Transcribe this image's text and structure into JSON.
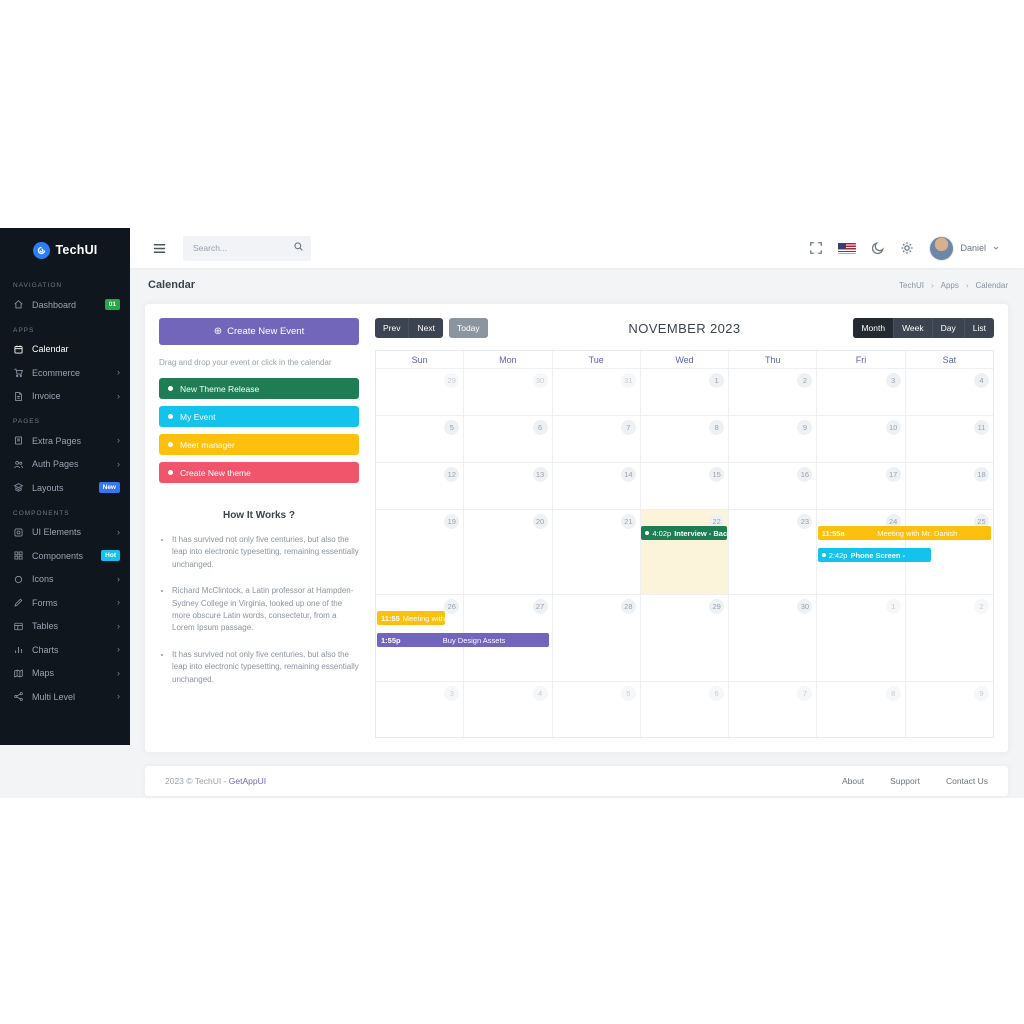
{
  "app": {
    "brand": "TechUI"
  },
  "sidebar": {
    "sections": [
      {
        "label": "NAVIGATION",
        "items": [
          {
            "icon": "home",
            "label": "Dashboard",
            "badge": "01",
            "badge_color": "#28a745"
          }
        ]
      },
      {
        "label": "APPS",
        "items": [
          {
            "icon": "calendar",
            "label": "Calendar",
            "active": true
          },
          {
            "icon": "cart",
            "label": "Ecommerce",
            "arrow": true
          },
          {
            "icon": "invoice",
            "label": "Invoice",
            "arrow": true
          }
        ]
      },
      {
        "label": "PAGES",
        "items": [
          {
            "icon": "pages",
            "label": "Extra Pages",
            "arrow": true
          },
          {
            "icon": "users",
            "label": "Auth Pages",
            "arrow": true
          },
          {
            "icon": "layers",
            "label": "Layouts",
            "badge": "New",
            "badge_color": "#3577f1"
          }
        ]
      },
      {
        "label": "COMPONENTS",
        "items": [
          {
            "icon": "ui-box",
            "label": "UI Elements",
            "arrow": true
          },
          {
            "icon": "components",
            "label": "Components",
            "badge": "Hot",
            "badge_color": "#14c3ec"
          },
          {
            "icon": "circle",
            "label": "Icons",
            "arrow": true
          },
          {
            "icon": "pen",
            "label": "Forms",
            "arrow": true
          },
          {
            "icon": "table",
            "label": "Tables",
            "arrow": true
          },
          {
            "icon": "bar-chart",
            "label": "Charts",
            "arrow": true
          },
          {
            "icon": "map",
            "label": "Maps",
            "arrow": true
          },
          {
            "icon": "share",
            "label": "Multi Level",
            "arrow": true
          }
        ]
      }
    ]
  },
  "topbar": {
    "search_placeholder": "Search...",
    "user_name": "Daniel"
  },
  "page_header": {
    "title": "Calendar",
    "breadcrumb": [
      "TechUI",
      "Apps",
      "Calendar"
    ]
  },
  "event_panel": {
    "create_label": "Create New Event",
    "plus_glyph": "⊕",
    "hint": "Drag and drop your event or click in the calendar",
    "draggable_events": [
      {
        "label": "New Theme Release",
        "color": "#1e7d52"
      },
      {
        "label": "My Event",
        "color": "#14c3ec"
      },
      {
        "label": "Meet manager",
        "color": "#fdc00d"
      },
      {
        "label": "Create New theme",
        "color": "#f1556c"
      }
    ],
    "how_title": "How It Works ?",
    "how_items": [
      "It has survived not only five centuries, but also the leap into electronic typesetting, remaining essentially unchanged.",
      "Richard McClintock, a Latin professor at Hampden-Sydney College in Virginia, looked up one of the more obscure Latin words, consectetur, from a Lorem Ipsum passage.",
      "It has survived not only five centuries, but also the leap into electronic typesetting, remaining essentially unchanged."
    ]
  },
  "calendar": {
    "title": "NOVEMBER 2023",
    "nav_buttons": [
      "Prev",
      "Next"
    ],
    "today_button": "Today",
    "views": [
      "Month",
      "Week",
      "Day",
      "List"
    ],
    "active_view": "Month",
    "day_headers": [
      "Sun",
      "Mon",
      "Tue",
      "Wed",
      "Thu",
      "Fri",
      "Sat"
    ],
    "weeks": [
      [
        {
          "n": "29",
          "muted": true
        },
        {
          "n": "30",
          "muted": true
        },
        {
          "n": "31",
          "muted": true
        },
        {
          "n": "1"
        },
        {
          "n": "2"
        },
        {
          "n": "3"
        },
        {
          "n": "4"
        }
      ],
      [
        {
          "n": "5"
        },
        {
          "n": "6"
        },
        {
          "n": "7"
        },
        {
          "n": "8"
        },
        {
          "n": "9"
        },
        {
          "n": "10"
        },
        {
          "n": "11"
        }
      ],
      [
        {
          "n": "12"
        },
        {
          "n": "13"
        },
        {
          "n": "14"
        },
        {
          "n": "15"
        },
        {
          "n": "16"
        },
        {
          "n": "17"
        },
        {
          "n": "18"
        }
      ],
      [
        {
          "n": "19"
        },
        {
          "n": "20"
        },
        {
          "n": "21"
        },
        {
          "n": "22",
          "today": true
        },
        {
          "n": "23"
        },
        {
          "n": "24"
        },
        {
          "n": "25"
        }
      ],
      [
        {
          "n": "26"
        },
        {
          "n": "27"
        },
        {
          "n": "28"
        },
        {
          "n": "29"
        },
        {
          "n": "30"
        },
        {
          "n": "1",
          "muted": true
        },
        {
          "n": "2",
          "muted": true
        }
      ],
      [
        {
          "n": "3",
          "muted": true
        },
        {
          "n": "4",
          "muted": true
        },
        {
          "n": "5",
          "muted": true
        },
        {
          "n": "6",
          "muted": true
        },
        {
          "n": "7",
          "muted": true
        },
        {
          "n": "8",
          "muted": true
        },
        {
          "n": "9",
          "muted": true
        }
      ]
    ],
    "events": [
      {
        "week": 3,
        "col": 3,
        "slot": 0,
        "span": 1,
        "time": "4:02p",
        "title": "Interview - Back",
        "color": "#1f7d53",
        "dot": true
      },
      {
        "week": 3,
        "col": 5,
        "slot": 0,
        "span": 2,
        "time": "11:55a",
        "title": "Meeting with Mr. Danish",
        "color": "#fdc00d",
        "spread": true
      },
      {
        "week": 3,
        "col": 5,
        "slot": 1,
        "span": 1.32,
        "time": "2:42p",
        "title": "Phone Screen -",
        "color": "#14c3ec",
        "dot": true
      },
      {
        "week": 4,
        "col": 0,
        "slot": 0,
        "span": 0.8,
        "time": "11:55",
        "title": "Meeting with Mr. Da",
        "color": "#fdc00d"
      },
      {
        "week": 4,
        "col": 0,
        "slot": 1,
        "span": 1.98,
        "time": "1:55p",
        "title": "Buy Design Assets",
        "color": "#7265bd",
        "spread": true
      }
    ],
    "today_color": "#fbf4da"
  },
  "footer": {
    "copyright": "2023 © TechUI -",
    "brand_link": "GetAppUI",
    "links": [
      "About",
      "Support",
      "Contact Us"
    ]
  }
}
